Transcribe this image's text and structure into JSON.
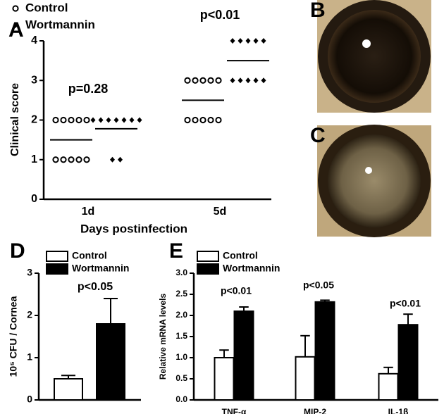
{
  "chart_data": [
    {
      "type": "dotplot",
      "panel_label": "A",
      "xlabel": "Days postinfection",
      "ylabel": "Clinical score",
      "categories": [
        "1d",
        "5d"
      ],
      "series": [
        {
          "name": "Control",
          "color": "#000000",
          "marker": "circle",
          "values": [
            [
              2,
              2,
              2,
              2,
              2,
              1,
              1,
              1,
              1,
              1
            ],
            [
              3,
              3,
              3,
              3,
              3,
              2,
              2,
              2,
              2,
              2
            ]
          ],
          "means": [
            1.5,
            2.5
          ]
        },
        {
          "name": "Wortmannin",
          "color": "#000000",
          "marker": "diamond",
          "values": [
            [
              2,
              2,
              2,
              2,
              2,
              2,
              2,
              1,
              1
            ],
            [
              4,
              4,
              4,
              4,
              4,
              3,
              3,
              3,
              3,
              3
            ]
          ],
          "means": [
            1.78,
            3.5
          ]
        }
      ],
      "annotations": [
        "p=0.28",
        "p<0.01"
      ],
      "ylim": [
        0,
        4
      ],
      "yticks": [
        0,
        1,
        2,
        3,
        4
      ]
    },
    {
      "type": "image",
      "panel_label": "B"
    },
    {
      "type": "image",
      "panel_label": "C"
    },
    {
      "type": "bar",
      "panel_label": "D",
      "ylabel": "10⁵ CFU / Cornea",
      "categories": [
        null
      ],
      "series": [
        {
          "name": "Control",
          "color": "#ffffff",
          "values": [
            0.5
          ],
          "errors": [
            0.08
          ]
        },
        {
          "name": "Wortmannin",
          "color": "#000000",
          "values": [
            1.8
          ],
          "errors": [
            0.6
          ]
        }
      ],
      "annotations": [
        "p<0.05"
      ],
      "ylim": [
        0,
        3
      ],
      "yticks": [
        0,
        1,
        2,
        3
      ]
    },
    {
      "type": "bar",
      "panel_label": "E",
      "ylabel": "Relative mRNA levels",
      "categories": [
        "TNF-α",
        "MIP-2",
        "IL-1β"
      ],
      "series": [
        {
          "name": "Control",
          "color": "#ffffff",
          "values": [
            1.0,
            1.02,
            0.62
          ],
          "errors": [
            0.18,
            0.5,
            0.15
          ]
        },
        {
          "name": "Wortmannin",
          "color": "#000000",
          "values": [
            2.1,
            2.32,
            1.78
          ],
          "errors": [
            0.1,
            0.04,
            0.25
          ]
        }
      ],
      "annotations": [
        "p<0.01",
        "p<0.05",
        "p<0.01"
      ],
      "ylim": [
        0,
        3
      ],
      "yticks": [
        {
          "value": 0,
          "label": "0.0"
        },
        {
          "value": 0.5,
          "label": "0.5"
        },
        {
          "value": 1,
          "label": "1.0"
        },
        {
          "value": 1.5,
          "label": "1.5"
        },
        {
          "value": 2,
          "label": "2.0"
        },
        {
          "value": 2.5,
          "label": "2.5"
        },
        {
          "value": 3,
          "label": "3.0"
        }
      ]
    }
  ]
}
